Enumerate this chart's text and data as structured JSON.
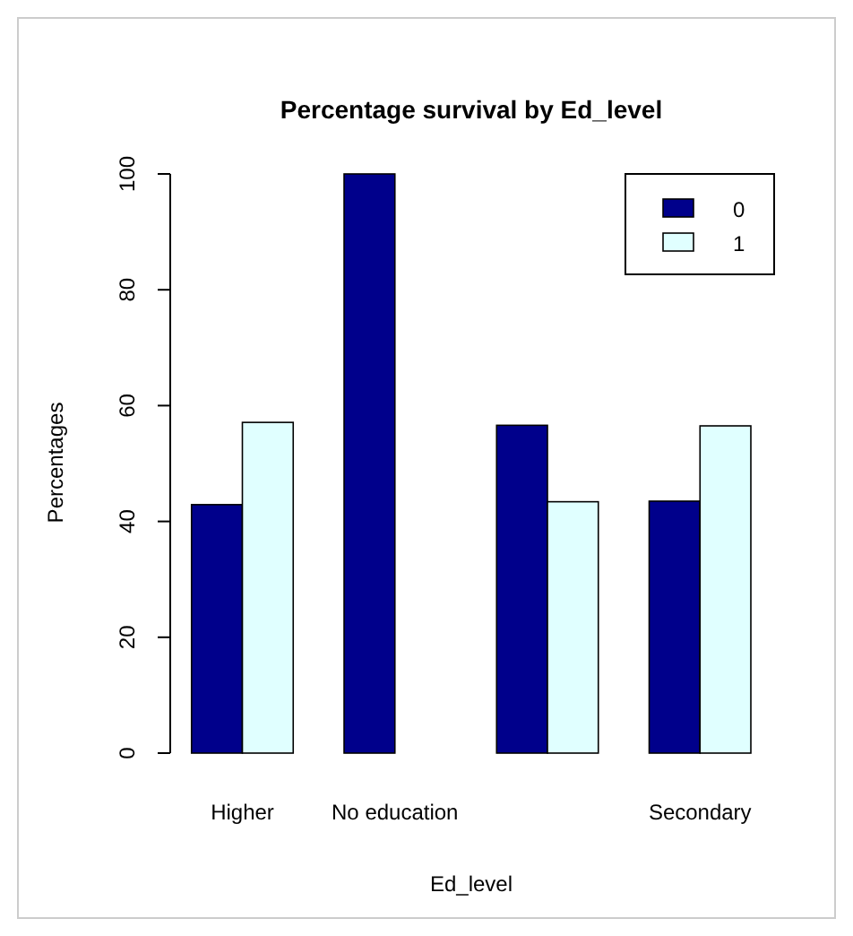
{
  "chart_data": {
    "type": "bar",
    "title": "Percentage survival by Ed_level",
    "xlabel": "Ed_level",
    "ylabel": "Percentages",
    "categories": [
      "Higher",
      "No education",
      null,
      "Secondary"
    ],
    "series": [
      {
        "name": "0",
        "color": "#00008b",
        "values": [
          42.9,
          100,
          56.6,
          43.5
        ]
      },
      {
        "name": "1",
        "color": "#e0ffff",
        "values": [
          57.1,
          0,
          43.4,
          56.5
        ]
      }
    ],
    "ylim": [
      0,
      100
    ],
    "yticks": [
      0,
      20,
      40,
      60,
      80,
      100
    ],
    "legend": "top right"
  }
}
